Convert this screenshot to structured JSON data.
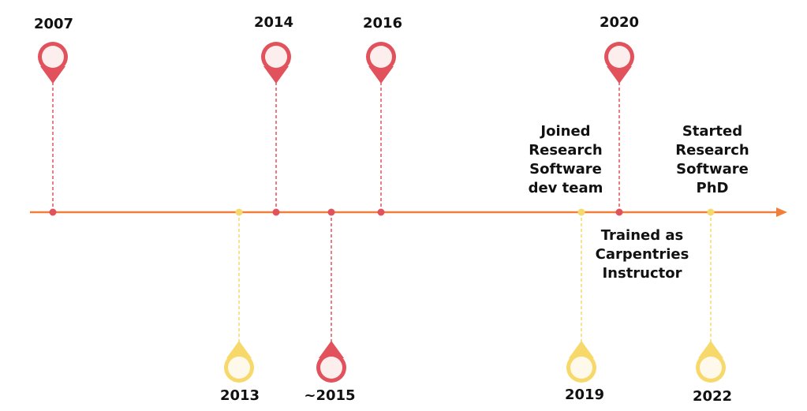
{
  "timeline": {
    "colors": {
      "axis": "#f07f3a",
      "red_marker": "#e2525c",
      "red_marker_fill": "#fdeeee",
      "yellow_marker": "#f7d96b",
      "yellow_marker_fill": "#fff9ec",
      "text": "#111111"
    },
    "events": [
      {
        "id": "2007",
        "year": "2007",
        "color": "red",
        "side": "top",
        "description": ""
      },
      {
        "id": "2013",
        "year": "2013",
        "color": "yellow",
        "side": "bottom",
        "description": ""
      },
      {
        "id": "2014",
        "year": "2014",
        "color": "red",
        "side": "top",
        "description": ""
      },
      {
        "id": "2015",
        "year": "~2015",
        "color": "red",
        "side": "bottom",
        "description": ""
      },
      {
        "id": "2016",
        "year": "2016",
        "color": "red",
        "side": "top",
        "description": ""
      },
      {
        "id": "2019",
        "year": "2019",
        "color": "yellow",
        "side": "bottom",
        "description": "Joined Research Software dev team"
      },
      {
        "id": "2020",
        "year": "2020",
        "color": "red",
        "side": "top",
        "description": "Trained as Carpentries Instructor"
      },
      {
        "id": "2022",
        "year": "2022",
        "color": "yellow",
        "side": "bottom",
        "description": "Started Research Software PhD"
      }
    ]
  }
}
